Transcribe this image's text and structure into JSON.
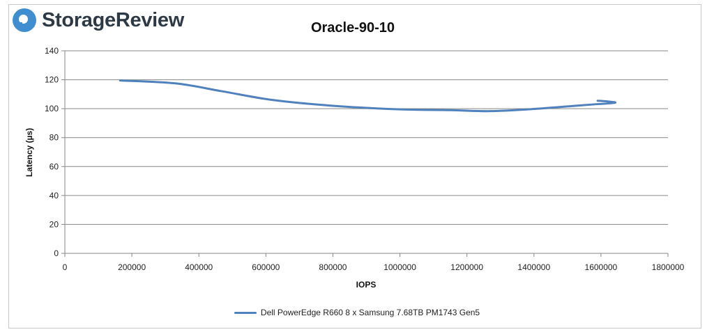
{
  "logo": {
    "text": "StorageReview"
  },
  "chart_data": {
    "type": "line",
    "title": "Oracle-90-10",
    "xlabel": "IOPS",
    "ylabel": "Latency (µs)",
    "xlim": [
      0,
      1800000
    ],
    "ylim": [
      0,
      140
    ],
    "xticks": [
      0,
      200000,
      400000,
      600000,
      800000,
      1000000,
      1200000,
      1400000,
      1600000,
      1800000
    ],
    "yticks": [
      0,
      20,
      40,
      60,
      80,
      100,
      120,
      140
    ],
    "grid": true,
    "legend_position": "bottom",
    "series": [
      {
        "name": "Dell PowerEdge R660 8 x Samsung 7.68TB PM1743 Gen5",
        "color": "#4f81bd",
        "x": [
          165000,
          330000,
          470000,
          620000,
          800000,
          1000000,
          1150000,
          1270000,
          1400000,
          1550000,
          1640000,
          1620000,
          1590000
        ],
        "y": [
          119.5,
          117.5,
          112,
          106,
          102,
          99.5,
          99,
          98.3,
          99.8,
          102.5,
          104,
          105,
          105.5
        ]
      }
    ]
  }
}
